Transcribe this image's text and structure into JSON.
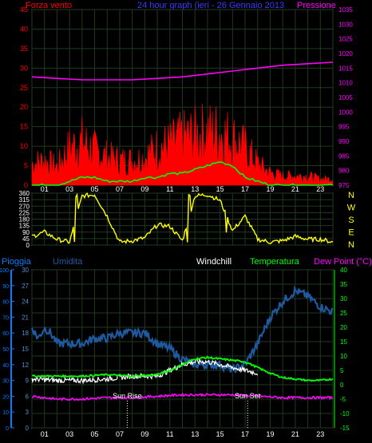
{
  "header": {
    "left_label": "Forza vento",
    "center_label": "24 hour graph (ieri - 26 Gennaio 2013",
    "right_label": "Pressione"
  },
  "colors": {
    "background": "#000000",
    "grid": "#1f3a1f",
    "wind_fill": "#ff0000",
    "wind_avg": "#00ff00",
    "pressure": "#ff00ff",
    "direction": "#ffff00",
    "humidity": "#1e5aa0",
    "windchill": "#ffffff",
    "temperature": "#00ff00",
    "dewpoint": "#ff00ff",
    "rain_axis": "#0080ff",
    "left_axis_text": "#ff0000",
    "right_axis_text": "#ff00ff",
    "frame": "#dddddd"
  },
  "x_ticks": [
    "01",
    "03",
    "05",
    "07",
    "09",
    "11",
    "13",
    "15",
    "17",
    "19",
    "21",
    "23"
  ],
  "chart_data": [
    {
      "type": "area",
      "title": "Forza vento / Pressione",
      "y_left_ticks": [
        0,
        5,
        10,
        15,
        20,
        25,
        30,
        35,
        40,
        45
      ],
      "y_left_range": [
        0,
        45
      ],
      "y_right_ticks": [
        975,
        980,
        985,
        990,
        995,
        1000,
        1005,
        1010,
        1015,
        1020,
        1025,
        1030,
        1035
      ],
      "y_right_range": [
        975,
        1035
      ],
      "series": [
        {
          "name": "Forza vento",
          "hours": [
            0,
            1,
            2,
            3,
            4,
            5,
            6,
            7,
            8,
            9,
            10,
            11,
            12,
            13,
            14,
            15,
            16,
            17,
            18,
            19,
            20,
            21,
            22,
            23,
            24
          ],
          "gust": [
            7,
            8,
            6,
            12,
            14,
            11,
            9,
            8,
            8,
            9,
            12,
            13,
            15,
            16,
            17,
            17,
            15,
            12,
            7,
            4,
            3,
            3,
            3,
            2,
            2
          ],
          "avg": [
            0,
            0,
            0,
            1,
            2,
            2,
            1,
            1,
            1,
            2,
            2,
            3,
            3,
            4,
            5,
            6,
            5,
            2,
            1,
            0,
            0,
            0,
            0,
            0,
            0
          ]
        },
        {
          "name": "Pressione",
          "hours": [
            0,
            2,
            4,
            6,
            8,
            10,
            12,
            14,
            16,
            18,
            20,
            22,
            24
          ],
          "values": [
            1012,
            1011.5,
            1011,
            1011,
            1011,
            1011.5,
            1012,
            1013,
            1014,
            1015,
            1016,
            1016.5,
            1017
          ]
        }
      ]
    },
    {
      "type": "line",
      "title": "Direzione vento",
      "y_left_ticks": [
        0,
        45,
        90,
        135,
        180,
        225,
        270,
        315,
        360
      ],
      "y_left_range": [
        0,
        360
      ],
      "y_right_labels": [
        "N",
        "W",
        "S",
        "E",
        "N"
      ],
      "series": [
        {
          "name": "Direzione",
          "hours": [
            0,
            1,
            2,
            3,
            4,
            5,
            6,
            7,
            8,
            9,
            10,
            11,
            12,
            13,
            14,
            15,
            16,
            17,
            18,
            19,
            20,
            21,
            22,
            23,
            24
          ],
          "values": [
            60,
            90,
            40,
            20,
            340,
            350,
            200,
            20,
            30,
            50,
            140,
            130,
            30,
            340,
            350,
            310,
            100,
            200,
            40,
            20,
            30,
            60,
            40,
            40,
            20
          ]
        }
      ]
    },
    {
      "type": "line",
      "title": "Pioggia / Umidita / Windchill / Temperatura / Dew Point",
      "labels": {
        "rain": "Pioggia",
        "humidity": "Umidita",
        "windchill": "Windchill",
        "temperature": "Temperatura",
        "dewpoint": "Dew Point (°C)"
      },
      "rain_ticks": [
        0,
        10,
        20,
        30,
        40,
        50,
        60,
        70,
        80,
        90,
        100
      ],
      "rain_range": [
        0,
        100
      ],
      "hum_ticks": [
        0,
        3,
        6,
        9,
        12,
        15,
        18,
        21,
        24,
        27,
        30
      ],
      "hum_range": [
        0,
        30
      ],
      "temp_ticks": [
        -15,
        -10,
        -5,
        0,
        5,
        10,
        15,
        20,
        25,
        30,
        35,
        40
      ],
      "temp_range": [
        -15,
        40
      ],
      "annotations": [
        {
          "text": "Sun Rise",
          "hour": 7.6
        },
        {
          "text": "Sun Set",
          "hour": 17.2
        }
      ],
      "series": [
        {
          "name": "Umidita",
          "hours": [
            0,
            0.5,
            1,
            1.5,
            2,
            3,
            4,
            5,
            6,
            7,
            8,
            9,
            10,
            11,
            12,
            13,
            14,
            15,
            16,
            17,
            18,
            19,
            20,
            21,
            22,
            23,
            24
          ],
          "values": [
            19,
            17,
            19,
            18,
            16,
            16,
            16,
            17,
            17,
            18,
            18,
            18,
            16,
            15,
            13,
            12,
            12,
            12,
            11,
            12,
            16,
            21,
            24,
            26,
            25,
            23,
            22
          ]
        },
        {
          "name": "Windchill",
          "hours": [
            0,
            2,
            4,
            6,
            8,
            10,
            11,
            12,
            13,
            14,
            15,
            16,
            17,
            18
          ],
          "values": [
            2,
            1.5,
            1.5,
            2,
            3,
            3,
            5,
            7,
            8,
            8,
            7,
            6,
            5,
            4
          ]
        },
        {
          "name": "Temperatura",
          "hours": [
            0,
            2,
            4,
            6,
            8,
            10,
            11,
            12,
            13,
            14,
            15,
            16,
            17,
            18,
            19,
            20,
            21,
            22,
            23,
            24
          ],
          "values": [
            3,
            3,
            3,
            3.5,
            3,
            3.5,
            5,
            7,
            9,
            9.5,
            9,
            8.5,
            8,
            6,
            4,
            2.5,
            2,
            1.5,
            1.5,
            2
          ]
        },
        {
          "name": "Dew Point (°C)",
          "hours": [
            0,
            2,
            4,
            6,
            8,
            10,
            12,
            14,
            16,
            18,
            20,
            22,
            24
          ],
          "values": [
            -4,
            -5,
            -5,
            -4.5,
            -4.5,
            -4,
            -3.5,
            -3.5,
            -3.5,
            -4,
            -4.5,
            -4.5,
            -4.5
          ]
        }
      ]
    }
  ]
}
